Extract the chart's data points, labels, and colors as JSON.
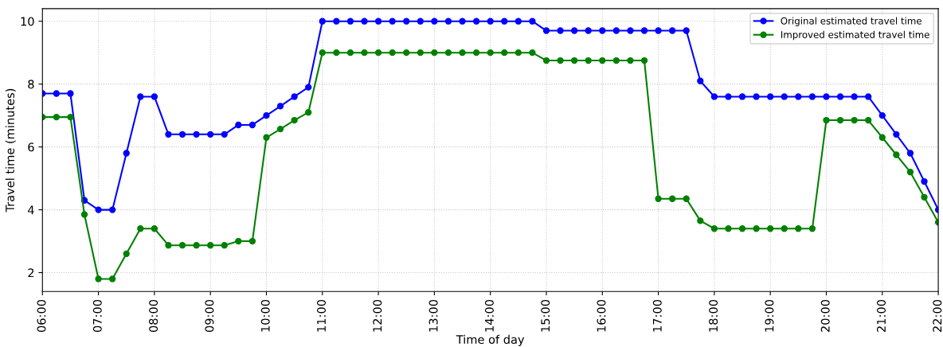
{
  "chart_data": {
    "type": "line",
    "xlabel": "Time of day",
    "ylabel": "Travel time (minutes)",
    "x": [
      6,
      6.25,
      6.5,
      6.75,
      7,
      7.25,
      7.5,
      7.75,
      8,
      8.25,
      8.5,
      8.75,
      9,
      9.25,
      9.5,
      9.75,
      10,
      10.25,
      10.5,
      10.75,
      11,
      11.25,
      11.5,
      11.75,
      12,
      12.25,
      12.5,
      12.75,
      13,
      13.25,
      13.5,
      13.75,
      14,
      14.25,
      14.5,
      14.75,
      15,
      15.25,
      15.5,
      15.75,
      16,
      16.25,
      16.5,
      16.75,
      17,
      17.25,
      17.5,
      17.75,
      18,
      18.25,
      18.5,
      18.75,
      19,
      19.25,
      19.5,
      19.75,
      20,
      20.25,
      20.5,
      20.75,
      21,
      21.25,
      21.5,
      21.75,
      22
    ],
    "series": [
      {
        "name": "Original estimated travel time",
        "color": "#0000ff",
        "values": [
          7.7,
          7.7,
          7.7,
          4.3,
          4.0,
          4.0,
          5.8,
          7.6,
          7.6,
          6.4,
          6.4,
          6.4,
          6.4,
          6.4,
          6.7,
          6.7,
          7.0,
          7.3,
          7.6,
          7.9,
          10,
          10,
          10,
          10,
          10,
          10,
          10,
          10,
          10,
          10,
          10,
          10,
          10,
          10,
          10,
          10,
          9.7,
          9.7,
          9.7,
          9.7,
          9.7,
          9.7,
          9.7,
          9.7,
          9.7,
          9.7,
          9.7,
          8.1,
          7.6,
          7.6,
          7.6,
          7.6,
          7.6,
          7.6,
          7.6,
          7.6,
          7.6,
          7.6,
          7.6,
          7.6,
          7.0,
          6.4,
          5.8,
          4.9,
          4.0
        ]
      },
      {
        "name": "Improved estimated travel time",
        "color": "#008000",
        "values": [
          6.95,
          6.95,
          6.95,
          3.85,
          1.8,
          1.8,
          2.6,
          3.4,
          3.4,
          2.87,
          2.87,
          2.87,
          2.87,
          2.87,
          3.0,
          3.0,
          6.3,
          6.57,
          6.85,
          7.1,
          9.0,
          9.0,
          9.0,
          9.0,
          9.0,
          9.0,
          9.0,
          9.0,
          9.0,
          9.0,
          9.0,
          9.0,
          9.0,
          9.0,
          9.0,
          9.0,
          8.75,
          8.75,
          8.75,
          8.75,
          8.75,
          8.75,
          8.75,
          8.75,
          4.35,
          4.35,
          4.35,
          3.65,
          3.4,
          3.4,
          3.4,
          3.4,
          3.4,
          3.4,
          3.4,
          3.4,
          6.85,
          6.85,
          6.85,
          6.85,
          6.3,
          5.75,
          5.2,
          4.4,
          3.6
        ]
      }
    ],
    "xlim": [
      6,
      22
    ],
    "xticks": [
      {
        "value": 6,
        "label": "06:00"
      },
      {
        "value": 7,
        "label": "07:00"
      },
      {
        "value": 8,
        "label": "08:00"
      },
      {
        "value": 9,
        "label": "09:00"
      },
      {
        "value": 10,
        "label": "10:00"
      },
      {
        "value": 11,
        "label": "11:00"
      },
      {
        "value": 12,
        "label": "12:00"
      },
      {
        "value": 13,
        "label": "13:00"
      },
      {
        "value": 14,
        "label": "14:00"
      },
      {
        "value": 15,
        "label": "15:00"
      },
      {
        "value": 16,
        "label": "16:00"
      },
      {
        "value": 17,
        "label": "17:00"
      },
      {
        "value": 18,
        "label": "18:00"
      },
      {
        "value": 19,
        "label": "19:00"
      },
      {
        "value": 20,
        "label": "20:00"
      },
      {
        "value": 21,
        "label": "21:00"
      },
      {
        "value": 22,
        "label": "22:00"
      }
    ],
    "ylim": [
      1.4,
      10.4
    ],
    "yticks": [
      2,
      4,
      6,
      8,
      10
    ],
    "grid": true,
    "legend": "top right",
    "marker": "circle",
    "line_style": "solid"
  }
}
